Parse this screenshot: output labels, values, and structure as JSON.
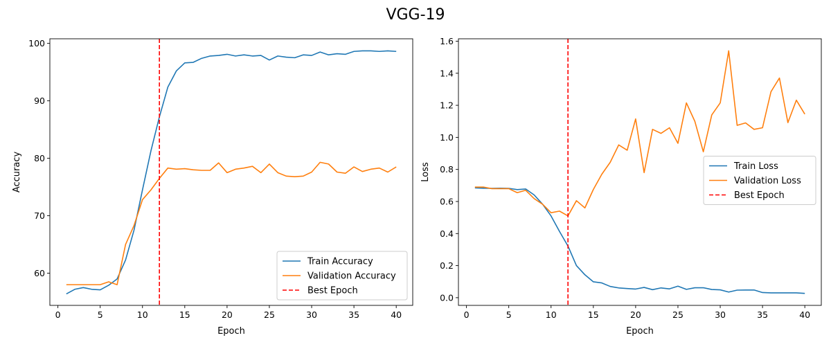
{
  "figure": {
    "suptitle": "VGG-19"
  },
  "colors": {
    "train": "#1f77b4",
    "validation": "#ff7f0e",
    "best_epoch": "#ff0000"
  },
  "chart_data": [
    {
      "type": "line",
      "xlabel": "Epoch",
      "ylabel": "Accuracy",
      "xlim": [
        -0.95,
        41.95
      ],
      "ylim": [
        54.4,
        100.8
      ],
      "xticks": [
        0,
        5,
        10,
        15,
        20,
        25,
        30,
        35,
        40
      ],
      "yticks": [
        60,
        70,
        80,
        90,
        100
      ],
      "grid": false,
      "legend_position": "lower right",
      "best_epoch": 12,
      "best_epoch_label": "Best Epoch",
      "x": [
        1,
        2,
        3,
        4,
        5,
        6,
        7,
        8,
        9,
        10,
        11,
        12,
        13,
        14,
        15,
        16,
        17,
        18,
        19,
        20,
        21,
        22,
        23,
        24,
        25,
        26,
        27,
        28,
        29,
        30,
        31,
        32,
        33,
        34,
        35,
        36,
        37,
        38,
        39,
        40
      ],
      "series": [
        {
          "name": "Train Accuracy",
          "values": [
            56.4,
            57.2,
            57.5,
            57.2,
            57.1,
            57.9,
            59.0,
            62.3,
            67.5,
            74.5,
            81.3,
            87.2,
            92.4,
            95.2,
            96.6,
            96.7,
            97.4,
            97.8,
            97.9,
            98.1,
            97.8,
            98.0,
            97.8,
            97.9,
            97.1,
            97.8,
            97.6,
            97.5,
            98.0,
            97.9,
            98.5,
            98.0,
            98.2,
            98.1,
            98.6,
            98.7,
            98.7,
            98.6,
            98.7,
            98.6
          ]
        },
        {
          "name": "Validation Accuracy",
          "values": [
            58.0,
            58.0,
            58.0,
            58.0,
            58.0,
            58.5,
            58.0,
            65.0,
            68.3,
            72.8,
            74.5,
            76.5,
            78.3,
            78.1,
            78.2,
            78.0,
            77.9,
            77.9,
            79.2,
            77.5,
            78.1,
            78.3,
            78.6,
            77.5,
            79.0,
            77.5,
            76.9,
            76.8,
            76.9,
            77.6,
            79.3,
            79.0,
            77.6,
            77.4,
            78.5,
            77.7,
            78.1,
            78.3,
            77.6,
            78.5
          ]
        }
      ]
    },
    {
      "type": "line",
      "xlabel": "Epoch",
      "ylabel": "Loss",
      "xlim": [
        -0.95,
        41.95
      ],
      "ylim": [
        -0.048,
        1.615
      ],
      "xticks": [
        0,
        5,
        10,
        15,
        20,
        25,
        30,
        35,
        40
      ],
      "yticks": [
        0.0,
        0.2,
        0.4,
        0.6,
        0.8,
        1.0,
        1.2,
        1.4,
        1.6
      ],
      "ytick_labels": [
        "0.0",
        "0.2",
        "0.4",
        "0.6",
        "0.8",
        "1.0",
        "1.2",
        "1.4",
        "1.6"
      ],
      "grid": false,
      "legend_position": "center right",
      "best_epoch": 12,
      "best_epoch_label": "Best Epoch",
      "x": [
        1,
        2,
        3,
        4,
        5,
        6,
        7,
        8,
        9,
        10,
        11,
        12,
        13,
        14,
        15,
        16,
        17,
        18,
        19,
        20,
        21,
        22,
        23,
        24,
        25,
        26,
        27,
        28,
        29,
        30,
        31,
        32,
        33,
        34,
        35,
        36,
        37,
        38,
        39,
        40
      ],
      "series": [
        {
          "name": "Train Loss",
          "values": [
            0.685,
            0.683,
            0.682,
            0.683,
            0.682,
            0.674,
            0.678,
            0.641,
            0.583,
            0.51,
            0.413,
            0.322,
            0.2,
            0.143,
            0.099,
            0.092,
            0.07,
            0.061,
            0.057,
            0.054,
            0.064,
            0.05,
            0.061,
            0.055,
            0.072,
            0.052,
            0.062,
            0.062,
            0.051,
            0.049,
            0.035,
            0.047,
            0.048,
            0.048,
            0.032,
            0.03,
            0.03,
            0.03,
            0.03,
            0.027
          ]
        },
        {
          "name": "Validation Loss",
          "values": [
            0.69,
            0.69,
            0.68,
            0.68,
            0.68,
            0.655,
            0.67,
            0.618,
            0.583,
            0.53,
            0.54,
            0.51,
            0.605,
            0.56,
            0.675,
            0.77,
            0.845,
            0.953,
            0.92,
            1.115,
            0.78,
            1.05,
            1.025,
            1.06,
            0.963,
            1.215,
            1.1,
            0.91,
            1.14,
            1.215,
            1.54,
            1.075,
            1.09,
            1.05,
            1.06,
            1.285,
            1.37,
            1.092,
            1.232,
            1.145
          ]
        }
      ]
    }
  ]
}
